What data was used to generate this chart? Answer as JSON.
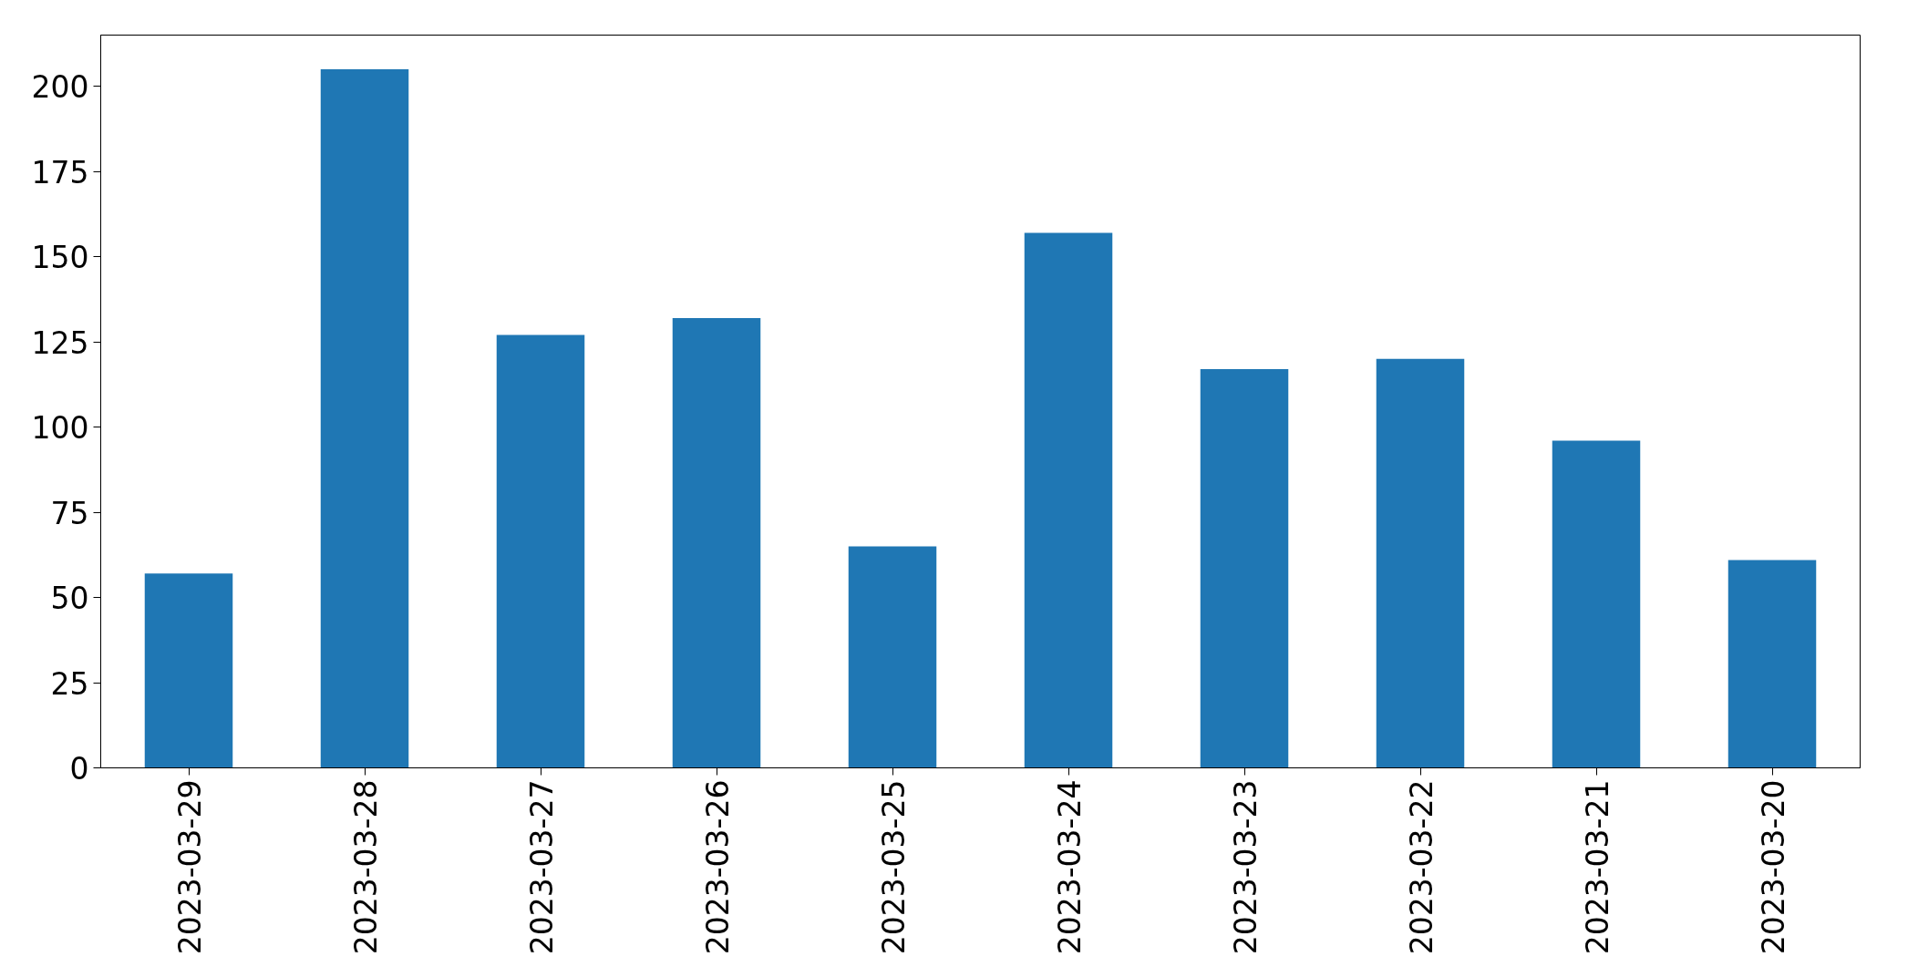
{
  "chart_data": {
    "type": "bar",
    "categories": [
      "2023-03-29",
      "2023-03-28",
      "2023-03-27",
      "2023-03-26",
      "2023-03-25",
      "2023-03-24",
      "2023-03-23",
      "2023-03-22",
      "2023-03-21",
      "2023-03-20"
    ],
    "values": [
      57,
      205,
      127,
      132,
      65,
      157,
      117,
      120,
      96,
      61
    ],
    "color": "#1f77b4",
    "ylim": [
      0,
      215
    ],
    "yticks": [
      0,
      25,
      50,
      75,
      100,
      125,
      150,
      175,
      200
    ],
    "grid": false
  }
}
